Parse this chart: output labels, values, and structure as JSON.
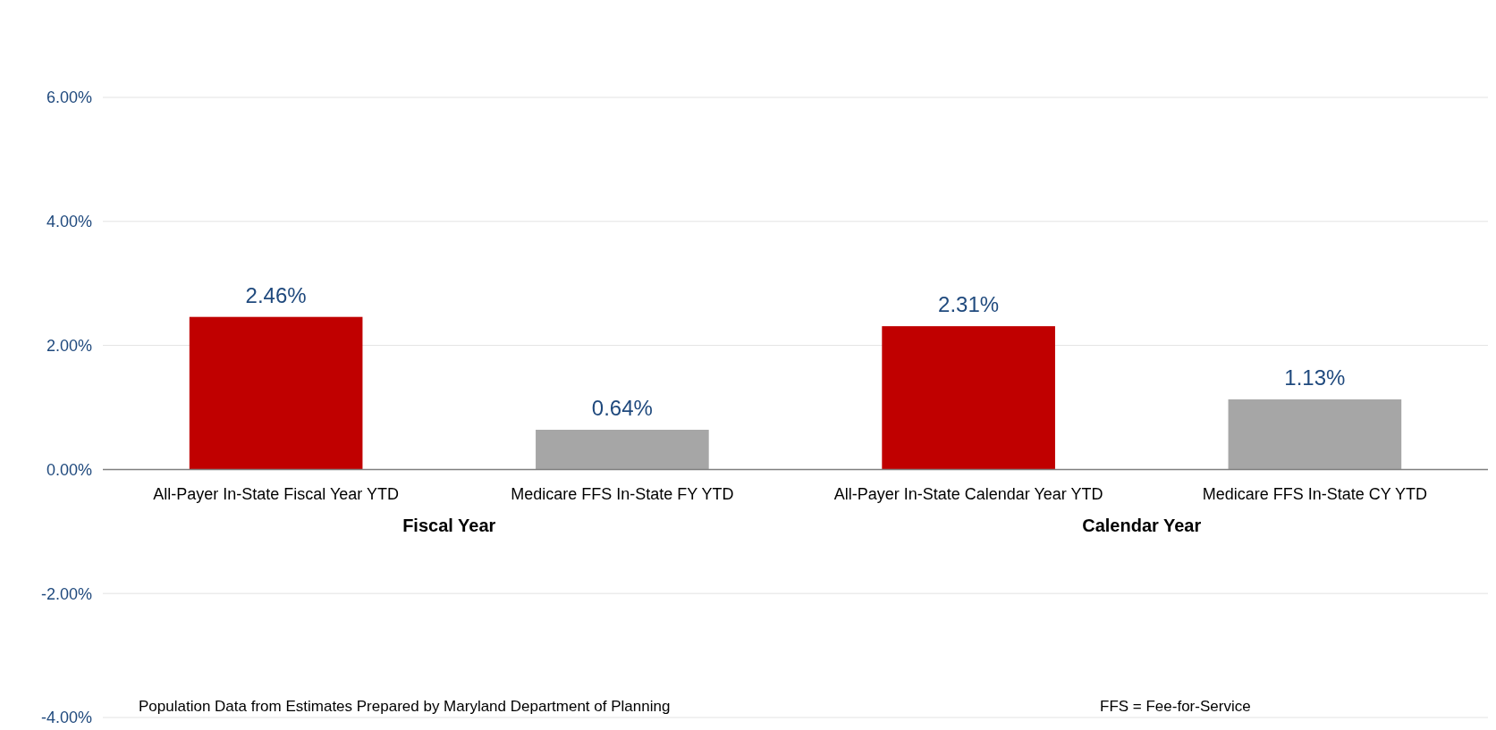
{
  "chart_data": {
    "type": "bar",
    "categories": [
      "All-Payer In-State Fiscal Year YTD",
      "Medicare FFS In-State FY YTD",
      "All-Payer In-State Calendar Year YTD",
      "Medicare FFS In-State CY YTD"
    ],
    "values": [
      2.46,
      0.64,
      2.31,
      1.13
    ],
    "colors": [
      "#c00000",
      "#a6a6a6",
      "#c00000",
      "#a6a6a6"
    ],
    "value_labels": [
      "2.46%",
      "0.64%",
      "2.31%",
      "1.13%"
    ],
    "ylim": [
      -4,
      6
    ],
    "yticks": [
      {
        "value": -4,
        "label": "-4.00%"
      },
      {
        "value": -2,
        "label": "-2.00%"
      },
      {
        "value": 0,
        "label": "0.00%"
      },
      {
        "value": 2,
        "label": "2.00%"
      },
      {
        "value": 4,
        "label": "4.00%"
      },
      {
        "value": 6,
        "label": "6.00%"
      }
    ],
    "grid": "y",
    "annotations": [
      "Fiscal Year",
      "Calendar Year",
      "Population Data from Estimates Prepared by Maryland Department of Planning",
      "FFS = Fee-for-Service"
    ]
  }
}
